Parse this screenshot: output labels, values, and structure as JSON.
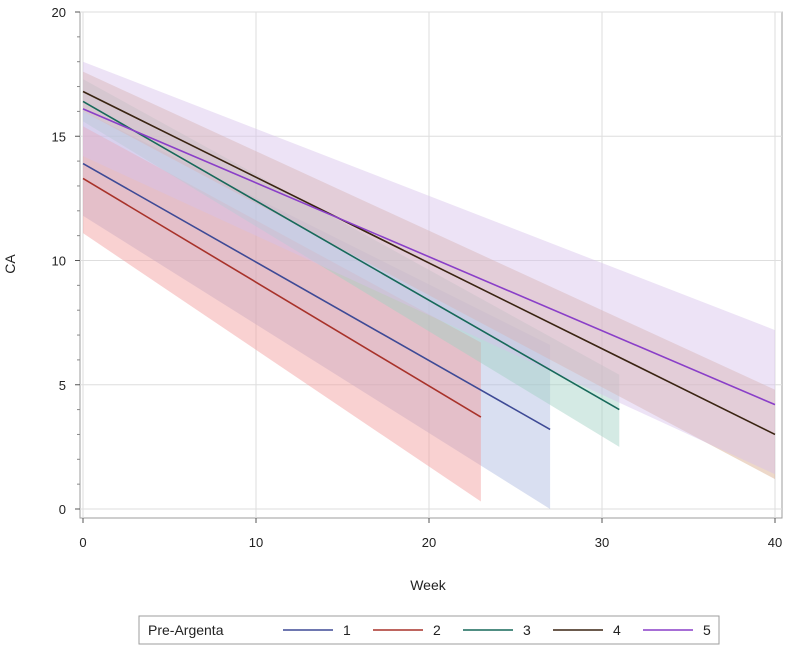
{
  "chart_data": {
    "type": "line",
    "title": "",
    "xlabel": "Week",
    "ylabel": "CA",
    "xlim": [
      0,
      40
    ],
    "ylim": [
      0,
      20
    ],
    "x_ticks": [
      0,
      10,
      20,
      30,
      40
    ],
    "y_ticks": [
      0,
      5,
      10,
      15,
      20
    ],
    "grid": true,
    "legend": {
      "title": "Pre-Argenta",
      "placement": "bottom",
      "labels": [
        "1",
        "2",
        "3",
        "4",
        "5"
      ]
    },
    "series": [
      {
        "name": "1",
        "color": "#3e4a96",
        "band_color": "#aab8e0",
        "line": [
          [
            0,
            13.9
          ],
          [
            27,
            3.2
          ]
        ],
        "band_upper": [
          [
            0,
            16.0
          ],
          [
            27,
            6.6
          ]
        ],
        "band_lower": [
          [
            0,
            11.8
          ],
          [
            27,
            0.0
          ]
        ]
      },
      {
        "name": "2",
        "color": "#a8322a",
        "band_color": "#f29a9a",
        "line": [
          [
            0,
            13.3
          ],
          [
            23,
            3.7
          ]
        ],
        "band_upper": [
          [
            0,
            15.4
          ],
          [
            23,
            6.7
          ]
        ],
        "band_lower": [
          [
            0,
            11.1
          ],
          [
            23,
            0.3
          ]
        ]
      },
      {
        "name": "3",
        "color": "#17695a",
        "band_color": "#9fd1c4",
        "line": [
          [
            0,
            16.4
          ],
          [
            31,
            4.0
          ]
        ],
        "band_upper": [
          [
            0,
            17.3
          ],
          [
            31,
            5.4
          ]
        ],
        "band_lower": [
          [
            0,
            15.6
          ],
          [
            31,
            2.5
          ]
        ]
      },
      {
        "name": "4",
        "color": "#3a2412",
        "band_color": "#d8a888",
        "line": [
          [
            0,
            16.8
          ],
          [
            40,
            3.0
          ]
        ],
        "band_upper": [
          [
            0,
            17.6
          ],
          [
            40,
            4.8
          ]
        ],
        "band_lower": [
          [
            0,
            16.0
          ],
          [
            40,
            1.2
          ]
        ]
      },
      {
        "name": "5",
        "color": "#8a3fc8",
        "band_color": "#d8c2ec",
        "line": [
          [
            0,
            16.1
          ],
          [
            40,
            4.2
          ]
        ],
        "band_upper": [
          [
            0,
            18.0
          ],
          [
            40,
            7.2
          ]
        ],
        "band_lower": [
          [
            0,
            14.2
          ],
          [
            40,
            1.4
          ]
        ]
      }
    ]
  }
}
